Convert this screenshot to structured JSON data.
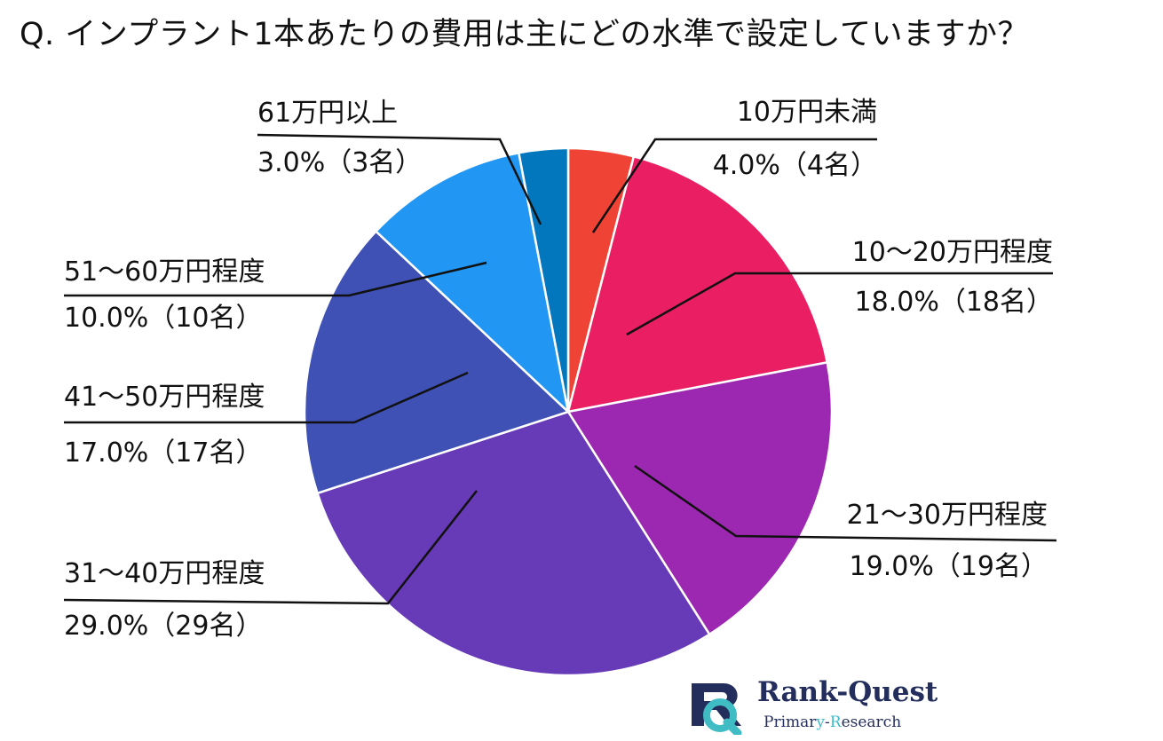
{
  "chart_data": {
    "type": "pie",
    "title": "Q. インプラント1本あたりの費用は主にどの水準で設定していますか？",
    "start_angle_deg": 0,
    "direction": "clockwise",
    "slices": [
      {
        "label": "10万円未満",
        "value": 4.0,
        "count": 4,
        "display": "4.0%（4名）",
        "color": "#ef4335"
      },
      {
        "label": "10〜20万円程度",
        "value": 18.0,
        "count": 18,
        "display": "18.0%（18名）",
        "color": "#e91e63"
      },
      {
        "label": "21〜30万円程度",
        "value": 19.0,
        "count": 19,
        "display": "19.0%（19名）",
        "color": "#9c27b0"
      },
      {
        "label": "31〜40万円程度",
        "value": 29.0,
        "count": 29,
        "display": "29.0%（29名）",
        "color": "#673ab7"
      },
      {
        "label": "41〜50万円程度",
        "value": 17.0,
        "count": 17,
        "display": "17.0%（17名）",
        "color": "#3f51b5"
      },
      {
        "label": "51〜60万円程度",
        "value": 10.0,
        "count": 10,
        "display": "10.0%（10名）",
        "color": "#2196f3"
      },
      {
        "label": "61万円以上",
        "value": 3.0,
        "count": 3,
        "display": "3.0%（3名）",
        "color": "#0277bd"
      }
    ]
  },
  "logo": {
    "name_part1": "Rank",
    "name_dash": "-",
    "name_part2": "Quest",
    "tagline_part1": "Primar",
    "tagline_y": "y",
    "tagline_dash": "-",
    "tagline_r": "R",
    "tagline_part2": "esearch",
    "colors": {
      "navy": "#232e5c",
      "teal": "#3fbcc4"
    }
  }
}
